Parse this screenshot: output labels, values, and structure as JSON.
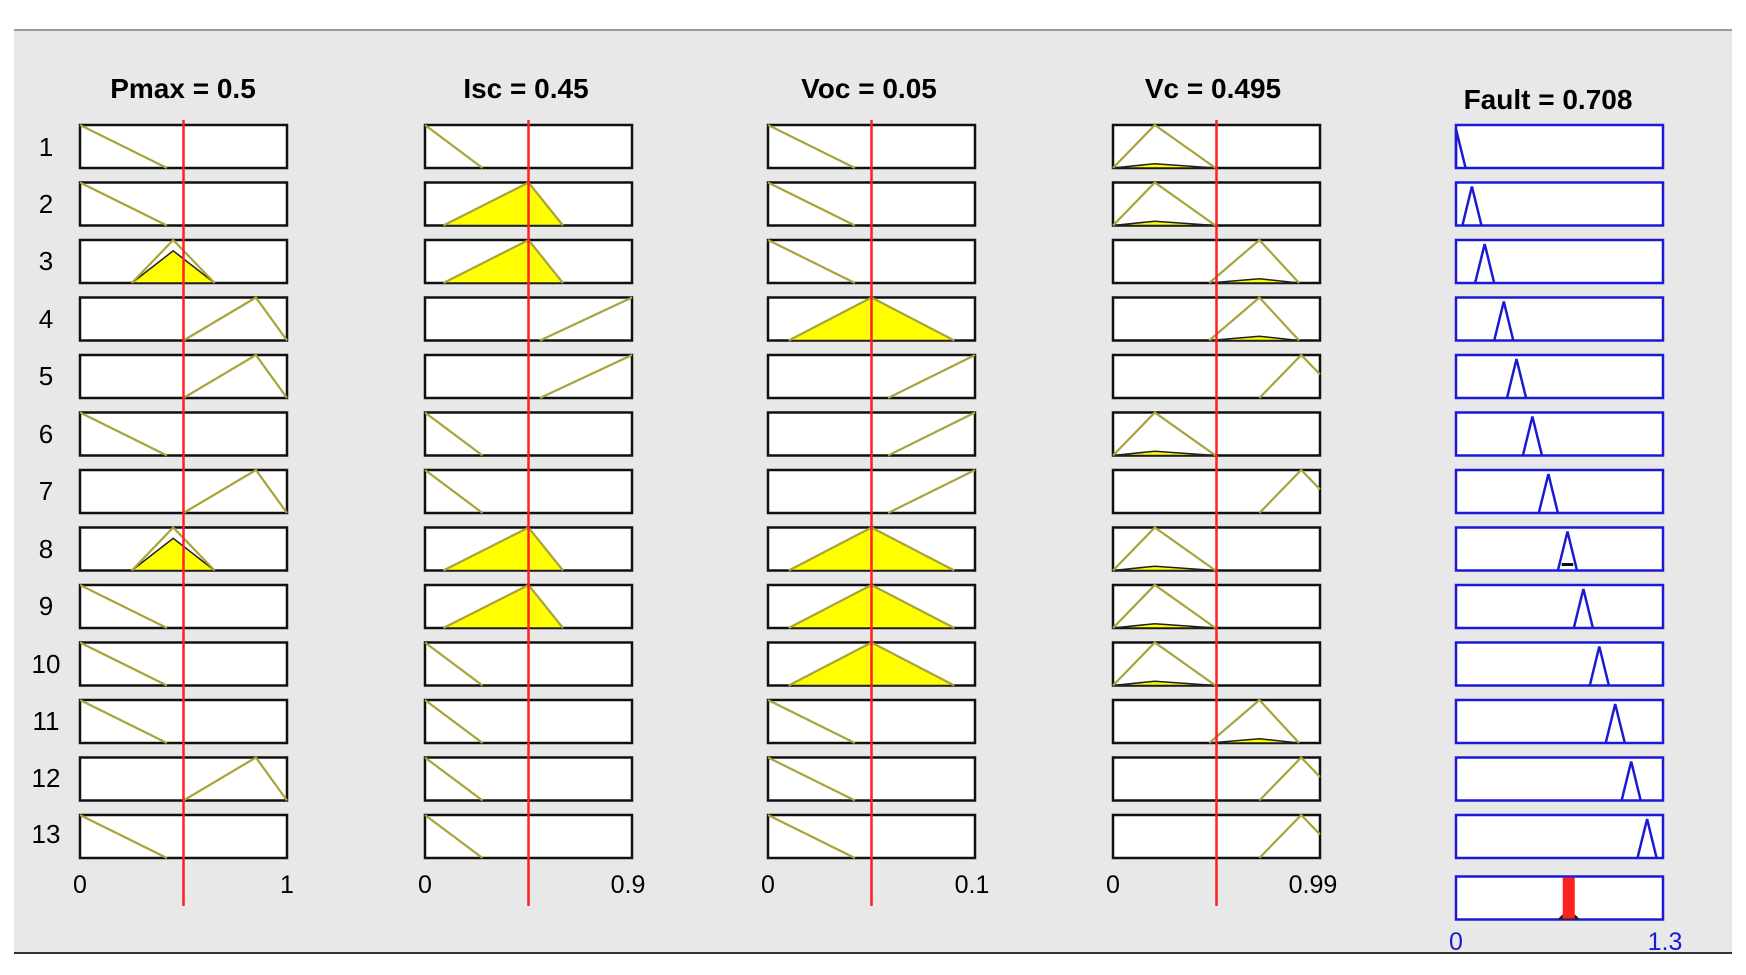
{
  "colors": {
    "background": "#e8e8e8",
    "membership_line": "#a9a33a",
    "fired_fill": "#ffff00",
    "fired_outline": "#1f1f1f",
    "output_line": "#1a1ad6",
    "cursor": "#ff2020"
  },
  "inputs": [
    {
      "title": "Pmax = 0.5",
      "value": 0.5,
      "range": [
        0,
        1
      ],
      "tick_min": "0",
      "tick_max": "1",
      "mfs": {
        "low": [
          -0.5,
          0.0,
          0.42
        ],
        "mid": [
          0.25,
          0.45,
          0.65
        ],
        "high": [
          0.5,
          0.85,
          1.0
        ]
      },
      "rules": [
        "low",
        "low",
        "mid",
        "high",
        "high",
        "low",
        "high",
        "mid",
        "low",
        "low",
        "low",
        "high",
        "low"
      ],
      "fired": [
        3,
        8
      ]
    },
    {
      "title": "Isc = 0.45",
      "value": 0.45,
      "range": [
        0,
        0.9
      ],
      "tick_min": "0",
      "tick_max": "0.9",
      "mfs": {
        "low": [
          -0.3,
          0.0,
          0.25
        ],
        "mid": [
          0.08,
          0.45,
          0.6
        ],
        "high": [
          0.5,
          0.9,
          1.3
        ]
      },
      "rules": [
        "low",
        "mid",
        "mid",
        "high",
        "high",
        "low",
        "low",
        "mid",
        "mid",
        "low",
        "low",
        "low",
        "low"
      ],
      "fired": [
        2,
        3,
        8,
        9
      ]
    },
    {
      "title": "Voc = 0.05",
      "value": 0.05,
      "range": [
        0,
        0.1
      ],
      "tick_min": "0",
      "tick_max": "0.1",
      "mfs": {
        "low": [
          -0.05,
          0.0,
          0.042
        ],
        "mid": [
          0.01,
          0.05,
          0.09
        ],
        "high": [
          0.058,
          0.1,
          0.14
        ]
      },
      "rules": [
        "low",
        "low",
        "low",
        "mid",
        "high",
        "high",
        "high",
        "mid",
        "mid",
        "mid",
        "low",
        "low",
        "low"
      ],
      "fired": [
        4,
        8,
        9,
        10
      ]
    },
    {
      "title": "Vc = 0.495",
      "value": 0.495,
      "range": [
        0,
        0.99
      ],
      "tick_min": "0",
      "tick_max": "0.99",
      "mfs": {
        "low": [
          0.0,
          0.2,
          0.49
        ],
        "mid": [
          0.46,
          0.7,
          0.89
        ],
        "high": [
          0.7,
          0.9,
          1.1
        ]
      },
      "rules": [
        "low",
        "low",
        "mid",
        "mid",
        "high",
        "low",
        "high",
        "low",
        "low",
        "low",
        "mid",
        "high",
        "high"
      ],
      "fired": [
        1,
        2,
        3,
        4,
        6,
        8,
        9,
        10,
        11
      ],
      "fired_level": 0.1
    }
  ],
  "output": {
    "title": "Fault = 0.708",
    "value": 0.708,
    "range": [
      0,
      1.3
    ],
    "tick_min": "0",
    "tick_max": "1.3",
    "rule_centers": [
      0.0,
      0.1,
      0.18,
      0.3,
      0.38,
      0.48,
      0.58,
      0.7,
      0.8,
      0.9,
      1.0,
      1.1,
      1.2
    ],
    "half_width": 0.06,
    "aggregate_level": 0.1
  },
  "rule_labels": [
    "1",
    "2",
    "3",
    "4",
    "5",
    "6",
    "7",
    "8",
    "9",
    "10",
    "11",
    "12",
    "13"
  ]
}
